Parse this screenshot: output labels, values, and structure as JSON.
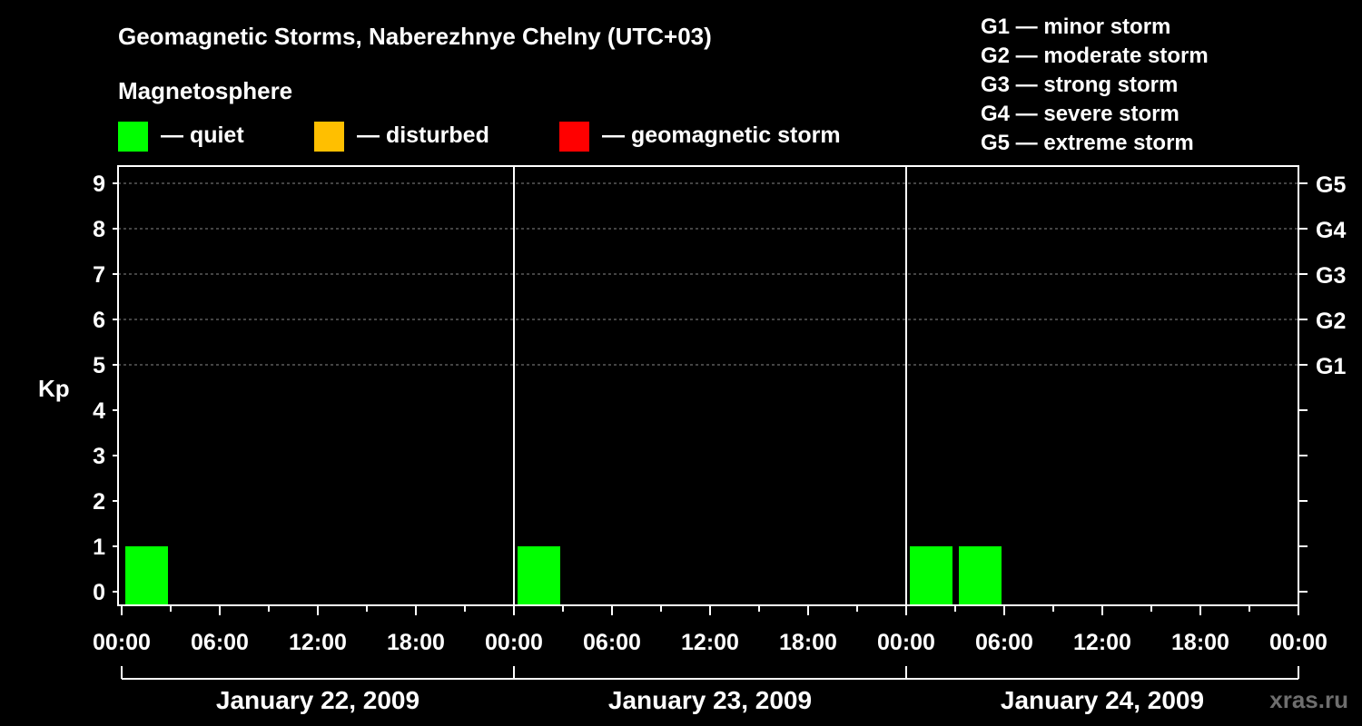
{
  "chart_data": {
    "type": "bar",
    "title": "Geomagnetic Storms, Naberezhnye Chelny (UTC+03)",
    "ylabel": "Kp",
    "ylim": [
      0,
      9
    ],
    "y_ticks": [
      "0",
      "1",
      "2",
      "3",
      "4",
      "5",
      "6",
      "7",
      "8",
      "9"
    ],
    "right_ticks": [
      {
        "kp": 5,
        "label": "G1"
      },
      {
        "kp": 6,
        "label": "G2"
      },
      {
        "kp": 7,
        "label": "G3"
      },
      {
        "kp": 8,
        "label": "G4"
      },
      {
        "kp": 9,
        "label": "G5"
      }
    ],
    "x_tick_labels": [
      "00:00",
      "06:00",
      "12:00",
      "18:00",
      "00:00",
      "06:00",
      "12:00",
      "18:00",
      "00:00",
      "06:00",
      "12:00",
      "18:00",
      "00:00"
    ],
    "x_range_hours": [
      0,
      72
    ],
    "days": [
      "January 22, 2009",
      "January 23, 2009",
      "January 24, 2009"
    ],
    "grid": "dashed lines at Kp 5 through 9",
    "bar_width_hours": 3,
    "bars": [
      {
        "start_hour": 0,
        "kp": 1,
        "level": "quiet"
      },
      {
        "start_hour": 24,
        "kp": 1,
        "level": "quiet"
      },
      {
        "start_hour": 48,
        "kp": 1,
        "level": "quiet"
      },
      {
        "start_hour": 51,
        "kp": 1,
        "level": "quiet"
      }
    ]
  },
  "legend": {
    "heading": "Magnetosphere",
    "items": [
      {
        "label": "— quiet",
        "color": "#00ff00"
      },
      {
        "label": "— disturbed",
        "color": "#ffbf00"
      },
      {
        "label": "— geomagnetic storm",
        "color": "#ff0000"
      }
    ]
  },
  "storm_scale": [
    "G1 — minor storm",
    "G2 — moderate storm",
    "G3 — strong storm",
    "G4 — severe storm",
    "G5 — extreme storm"
  ],
  "watermark": "xras.ru",
  "colors": {
    "background": "#000000",
    "foreground": "#ffffff",
    "grid": "#888888",
    "quiet": "#00ff00",
    "disturbed": "#ffbf00",
    "storm": "#ff0000",
    "watermark": "#6e6e6e"
  }
}
